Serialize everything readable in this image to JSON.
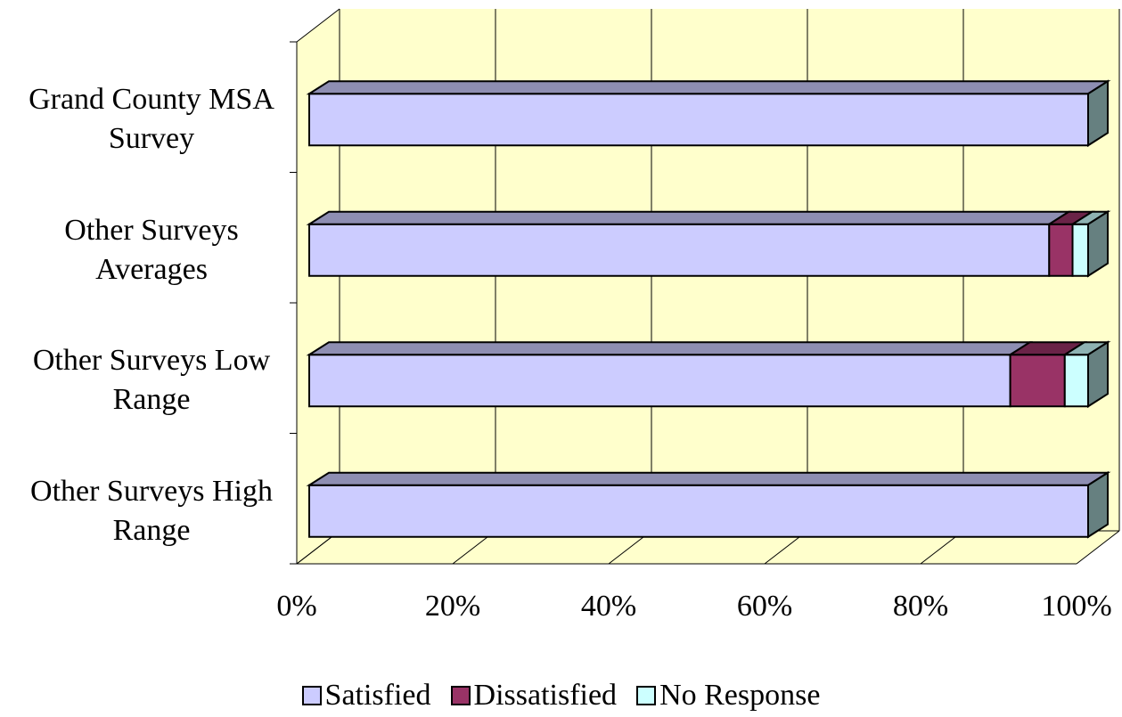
{
  "chart_data": {
    "type": "bar",
    "orientation": "horizontal",
    "stacked": true,
    "categories": [
      "Grand County MSA Survey",
      "Other Surveys Averages",
      "Other Surveys Low Range",
      "Other Surveys High Range"
    ],
    "series": [
      {
        "name": "Satisfied",
        "color": "#ccccff",
        "values": [
          100,
          95,
          90,
          100
        ]
      },
      {
        "name": "Dissatisfied",
        "color": "#993366",
        "values": [
          0,
          3,
          7,
          0
        ]
      },
      {
        "name": "No Response",
        "color": "#ccffff",
        "values": [
          0,
          2,
          3,
          0
        ]
      }
    ],
    "xlim": [
      0,
      100
    ],
    "xticks": [
      {
        "value": 0,
        "label": "0%"
      },
      {
        "value": 20,
        "label": "20%"
      },
      {
        "value": 40,
        "label": "40%"
      },
      {
        "value": 60,
        "label": "60%"
      },
      {
        "value": 80,
        "label": "80%"
      },
      {
        "value": 100,
        "label": "100%"
      }
    ],
    "grid": true,
    "wall_color": "#ffffcc"
  }
}
